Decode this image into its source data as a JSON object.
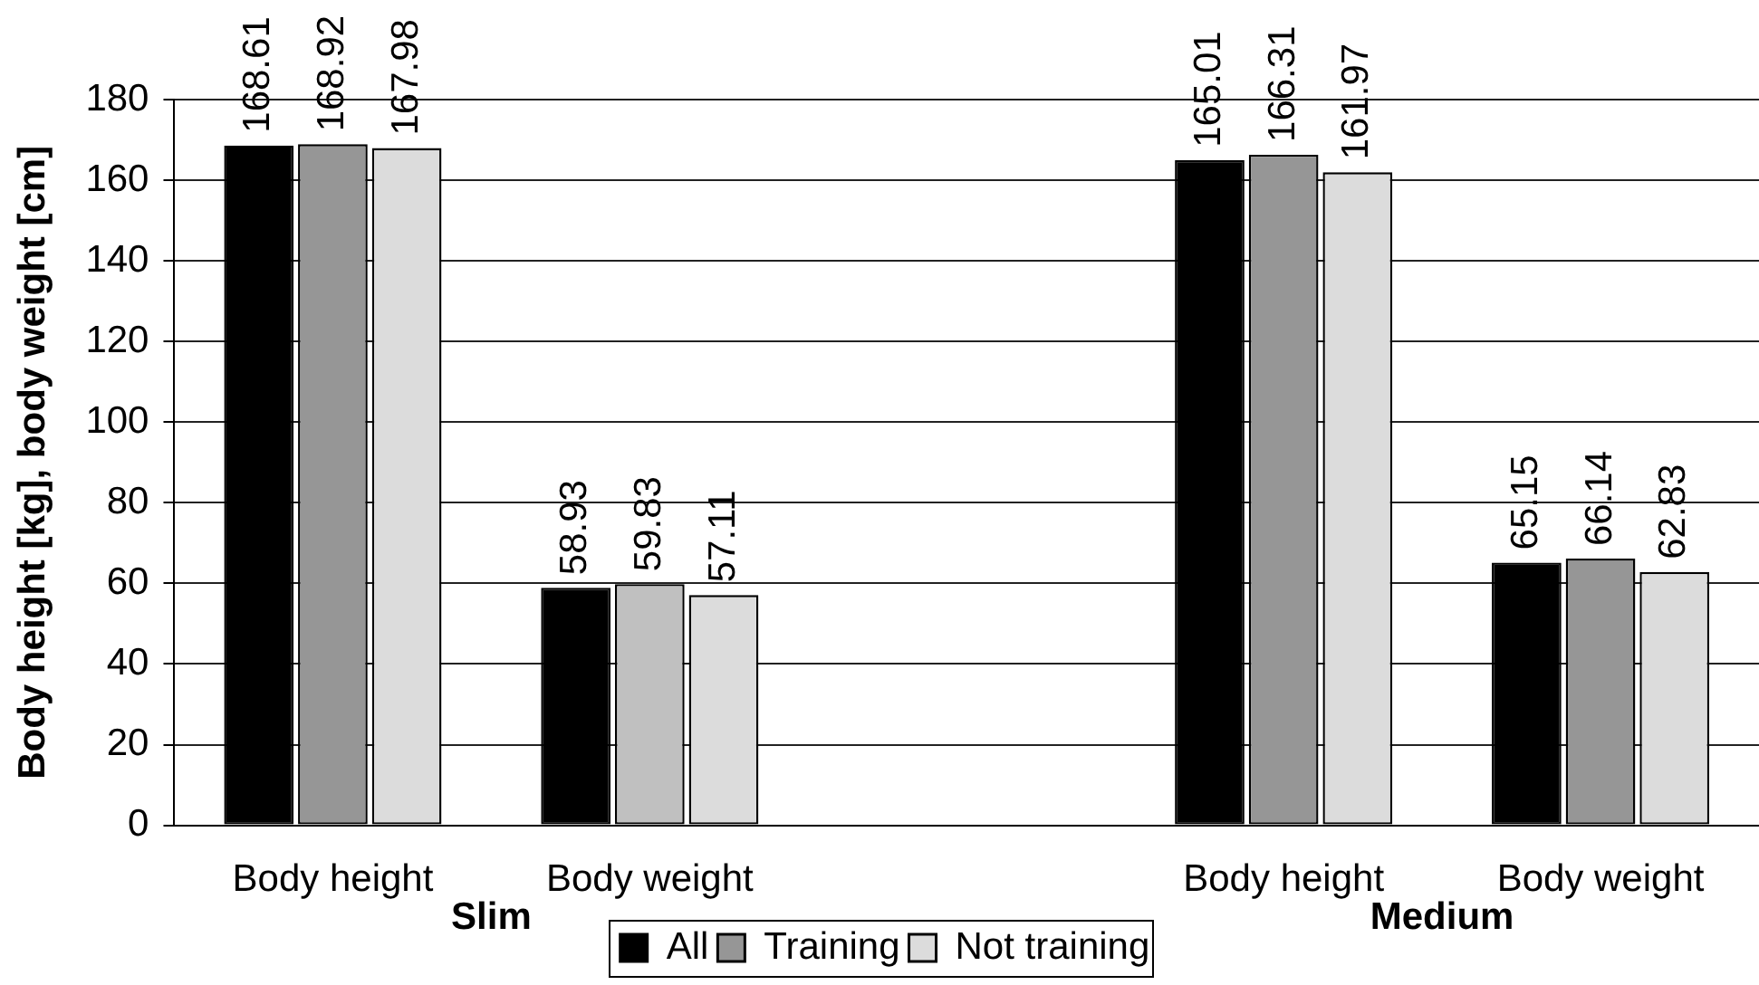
{
  "chart_data": {
    "type": "bar",
    "ylabel": "Body height [kg], body weight [cm]",
    "categories": [
      "Body height",
      "Body weight",
      null,
      "Body height",
      "Body weight"
    ],
    "series": [
      {
        "name": "All",
        "color": "#000000",
        "values": [
          168.61,
          58.93,
          null,
          165.01,
          65.15
        ]
      },
      {
        "name": "Training",
        "color": "#969696",
        "colors": [
          "#969696",
          "#c0c0c0",
          "#969696",
          "#969696",
          "#969696"
        ],
        "values": [
          168.92,
          59.83,
          null,
          166.31,
          66.14
        ]
      },
      {
        "name": "Not training",
        "color": "#dcdcdc",
        "values": [
          167.98,
          57.11,
          null,
          161.97,
          62.83
        ]
      }
    ],
    "ylim": [
      0,
      180
    ],
    "yticks": [
      0,
      20,
      40,
      60,
      80,
      100,
      120,
      140,
      160,
      180
    ],
    "grid": "y",
    "legend": "bottom",
    "data_labels": true,
    "annotations": [
      "Slim",
      "Medium"
    ]
  }
}
